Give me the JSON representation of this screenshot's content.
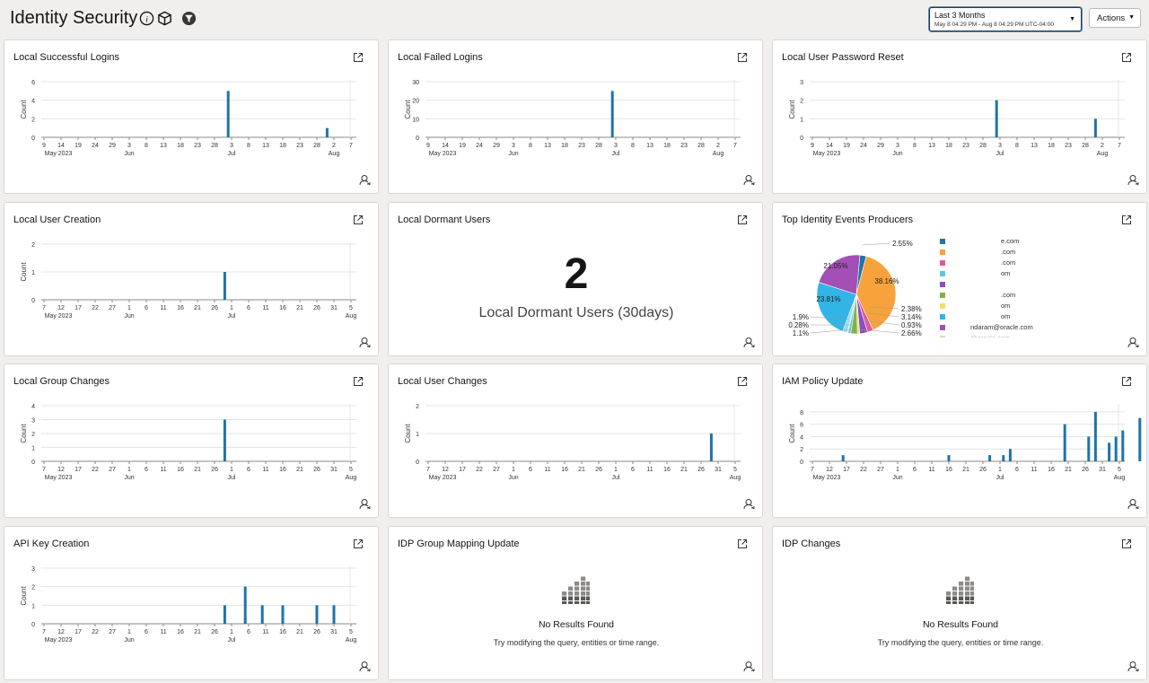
{
  "page": {
    "title": "Identity Security",
    "header_icons": [
      "info-icon",
      "cube-icon",
      "filter-icon"
    ],
    "time_range": {
      "label": "Last 3 Months",
      "detail": "May 8 04:29 PM - Aug 8 04:29 PM UTC-04:00"
    },
    "actions_label": "Actions"
  },
  "accent_color": "#1f74a6",
  "widgets": [
    {
      "title": "Local Successful Logins",
      "chart_data": {
        "type": "bar",
        "ylabel": "Count",
        "ylim": [
          0,
          6
        ],
        "yticks": [
          0,
          2,
          4,
          6
        ],
        "xticks": [
          "9",
          "14",
          "19",
          "24",
          "29",
          "3",
          "8",
          "13",
          "18",
          "23",
          "28",
          "3",
          "8",
          "13",
          "18",
          "23",
          "28",
          "2",
          "7"
        ],
        "month_labels": [
          {
            "tick": 0,
            "label": "May 2023"
          },
          {
            "tick": 5,
            "label": "Jun"
          },
          {
            "tick": 11,
            "label": "Jul"
          },
          {
            "tick": 17,
            "label": "Aug"
          }
        ],
        "bars": [
          {
            "x": 10.8,
            "value": 5
          },
          {
            "x": 16.6,
            "value": 1
          }
        ]
      }
    },
    {
      "title": "Local Failed Logins",
      "chart_data": {
        "type": "bar",
        "ylabel": "Count",
        "ylim": [
          0,
          30
        ],
        "yticks": [
          0,
          10,
          20,
          30
        ],
        "xticks": [
          "9",
          "14",
          "19",
          "24",
          "29",
          "3",
          "8",
          "13",
          "18",
          "23",
          "28",
          "3",
          "8",
          "13",
          "18",
          "23",
          "28",
          "2",
          "7"
        ],
        "month_labels": [
          {
            "tick": 0,
            "label": "May 2023"
          },
          {
            "tick": 5,
            "label": "Jun"
          },
          {
            "tick": 11,
            "label": "Jul"
          },
          {
            "tick": 17,
            "label": "Aug"
          }
        ],
        "bars": [
          {
            "x": 10.8,
            "value": 25
          }
        ]
      }
    },
    {
      "title": "Local User Password Reset",
      "chart_data": {
        "type": "bar",
        "ylabel": "Count",
        "ylim": [
          0,
          3
        ],
        "yticks": [
          0,
          1,
          2,
          3
        ],
        "xticks": [
          "9",
          "14",
          "19",
          "24",
          "29",
          "3",
          "8",
          "13",
          "18",
          "23",
          "28",
          "3",
          "8",
          "13",
          "18",
          "23",
          "28",
          "2",
          "7"
        ],
        "month_labels": [
          {
            "tick": 0,
            "label": "May 2023"
          },
          {
            "tick": 5,
            "label": "Jun"
          },
          {
            "tick": 11,
            "label": "Jul"
          },
          {
            "tick": 17,
            "label": "Aug"
          }
        ],
        "bars": [
          {
            "x": 10.8,
            "value": 2
          },
          {
            "x": 16.6,
            "value": 1
          }
        ]
      }
    },
    {
      "title": "Local User Creation",
      "chart_data": {
        "type": "bar",
        "ylabel": "Count",
        "ylim": [
          0,
          2
        ],
        "yticks": [
          0,
          1,
          2
        ],
        "xticks": [
          "7",
          "12",
          "17",
          "22",
          "27",
          "1",
          "6",
          "11",
          "16",
          "21",
          "26",
          "1",
          "6",
          "11",
          "16",
          "21",
          "26",
          "31",
          "5"
        ],
        "month_labels": [
          {
            "tick": 0,
            "label": "May 2023"
          },
          {
            "tick": 5,
            "label": "Jun"
          },
          {
            "tick": 11,
            "label": "Jul"
          },
          {
            "tick": 18,
            "label": "Aug"
          }
        ],
        "bars": [
          {
            "x": 10.6,
            "value": 1
          }
        ]
      }
    },
    {
      "title": "Local Dormant Users",
      "big_number": "2",
      "big_label": "Local Dormant Users (30days)"
    },
    {
      "title": "Top Identity Events Producers",
      "chart_data": {
        "type": "pie",
        "slices": [
          {
            "value": 2.55,
            "label": "2.55%",
            "color": "#1f74a6"
          },
          {
            "value": 38.16,
            "label": "38.16%",
            "color": "#f8a23c"
          },
          {
            "value": 2.38,
            "label": "2.38%",
            "color": "#e0599c"
          },
          {
            "value": 3.14,
            "label": "3.14%",
            "color": "#8a4ec5"
          },
          {
            "value": 0.93,
            "label": "0.93%",
            "color": "#f0de62"
          },
          {
            "value": 2.66,
            "label": "2.66%",
            "color": "#7fb34a"
          },
          {
            "value": 1.1,
            "label": "1.1%",
            "color": "#5fc6d6"
          },
          {
            "value": 0.28,
            "label": "0.28%",
            "color": "#c9e7b3"
          },
          {
            "value": 1.9,
            "label": "1.9%",
            "color": "#9fd7ee"
          },
          {
            "value": 23.81,
            "label": "23.81%",
            "color": "#32b4e6"
          },
          {
            "value": 21.05,
            "label": "21.05%",
            "color": "#a44fb5"
          }
        ],
        "legend": [
          {
            "color": "#1f74a6",
            "text": "e.com"
          },
          {
            "color": "#f8a23c",
            "text": ".com"
          },
          {
            "color": "#e0599c",
            "text": ".com"
          },
          {
            "color": "#5fc6d6",
            "text": "om"
          },
          {
            "color": "#8a4ec5",
            "text": ""
          },
          {
            "color": "#7fb34a",
            "text": ".com"
          },
          {
            "color": "#f0de62",
            "text": "om"
          },
          {
            "color": "#32b4e6",
            "text": "om"
          },
          {
            "color": "#a44fb5",
            "text": "ndaram@oracle.com"
          },
          {
            "color": "#c9e7b3",
            "text": "@oracle.com"
          }
        ]
      }
    },
    {
      "title": "Local Group Changes",
      "chart_data": {
        "type": "bar",
        "ylabel": "Count",
        "ylim": [
          0,
          4
        ],
        "yticks": [
          0,
          1,
          2,
          3,
          4
        ],
        "xticks": [
          "7",
          "12",
          "17",
          "22",
          "27",
          "1",
          "6",
          "11",
          "16",
          "21",
          "26",
          "1",
          "6",
          "11",
          "16",
          "21",
          "26",
          "31",
          "5"
        ],
        "month_labels": [
          {
            "tick": 0,
            "label": "May 2023"
          },
          {
            "tick": 5,
            "label": "Jun"
          },
          {
            "tick": 11,
            "label": "Jul"
          },
          {
            "tick": 18,
            "label": "Aug"
          }
        ],
        "bars": [
          {
            "x": 10.6,
            "value": 3
          }
        ]
      }
    },
    {
      "title": "Local User Changes",
      "chart_data": {
        "type": "bar",
        "ylabel": "Count",
        "ylim": [
          0,
          2
        ],
        "yticks": [
          0,
          1,
          2
        ],
        "xticks": [
          "7",
          "12",
          "17",
          "22",
          "27",
          "1",
          "6",
          "11",
          "16",
          "21",
          "26",
          "1",
          "6",
          "11",
          "16",
          "21",
          "26",
          "31",
          "5"
        ],
        "month_labels": [
          {
            "tick": 0,
            "label": "May 2023"
          },
          {
            "tick": 5,
            "label": "Jun"
          },
          {
            "tick": 11,
            "label": "Jul"
          },
          {
            "tick": 18,
            "label": "Aug"
          }
        ],
        "bars": [
          {
            "x": 16.6,
            "value": 1
          }
        ]
      }
    },
    {
      "title": "IAM Policy Update",
      "chart_data": {
        "type": "bar",
        "ylabel": "Count",
        "ylim": [
          0,
          9
        ],
        "yticks": [
          0,
          2,
          4,
          6,
          8
        ],
        "xticks": [
          "7",
          "12",
          "17",
          "22",
          "27",
          "1",
          "6",
          "11",
          "16",
          "21",
          "26",
          "1",
          "6",
          "11",
          "16",
          "21",
          "26",
          "31",
          "5"
        ],
        "month_labels": [
          {
            "tick": 0,
            "label": "May 2023"
          },
          {
            "tick": 5,
            "label": "Jun"
          },
          {
            "tick": 11,
            "label": "Jul"
          },
          {
            "tick": 18,
            "label": "Aug"
          }
        ],
        "bars": [
          {
            "x": 1.8,
            "value": 1
          },
          {
            "x": 8.0,
            "value": 1
          },
          {
            "x": 10.4,
            "value": 1
          },
          {
            "x": 11.2,
            "value": 1
          },
          {
            "x": 11.6,
            "value": 2
          },
          {
            "x": 14.8,
            "value": 6
          },
          {
            "x": 16.2,
            "value": 4
          },
          {
            "x": 16.6,
            "value": 8
          },
          {
            "x": 17.4,
            "value": 3
          },
          {
            "x": 17.8,
            "value": 4
          },
          {
            "x": 18.2,
            "value": 5
          },
          {
            "x": 19.2,
            "value": 7
          }
        ]
      }
    },
    {
      "title": "API Key Creation",
      "chart_data": {
        "type": "bar",
        "ylabel": "Count",
        "ylim": [
          0,
          3
        ],
        "yticks": [
          0,
          1,
          2,
          3
        ],
        "xticks": [
          "7",
          "12",
          "17",
          "22",
          "27",
          "1",
          "6",
          "11",
          "16",
          "21",
          "26",
          "1",
          "6",
          "11",
          "16",
          "21",
          "26",
          "31",
          "5"
        ],
        "month_labels": [
          {
            "tick": 0,
            "label": "May 2023"
          },
          {
            "tick": 5,
            "label": "Jun"
          },
          {
            "tick": 11,
            "label": "Jul"
          },
          {
            "tick": 18,
            "label": "Aug"
          }
        ],
        "bars": [
          {
            "x": 10.6,
            "value": 1
          },
          {
            "x": 11.8,
            "value": 2
          },
          {
            "x": 12.8,
            "value": 1
          },
          {
            "x": 14.0,
            "value": 1
          },
          {
            "x": 16.0,
            "value": 1
          },
          {
            "x": 17.0,
            "value": 1
          }
        ]
      }
    },
    {
      "title": "IDP Group Mapping Update",
      "empty": {
        "title": "No Results Found",
        "message": "Try modifying the query, entities or time range."
      }
    },
    {
      "title": "IDP Changes",
      "empty": {
        "title": "No Results Found",
        "message": "Try modifying the query, entities or time range."
      }
    }
  ]
}
